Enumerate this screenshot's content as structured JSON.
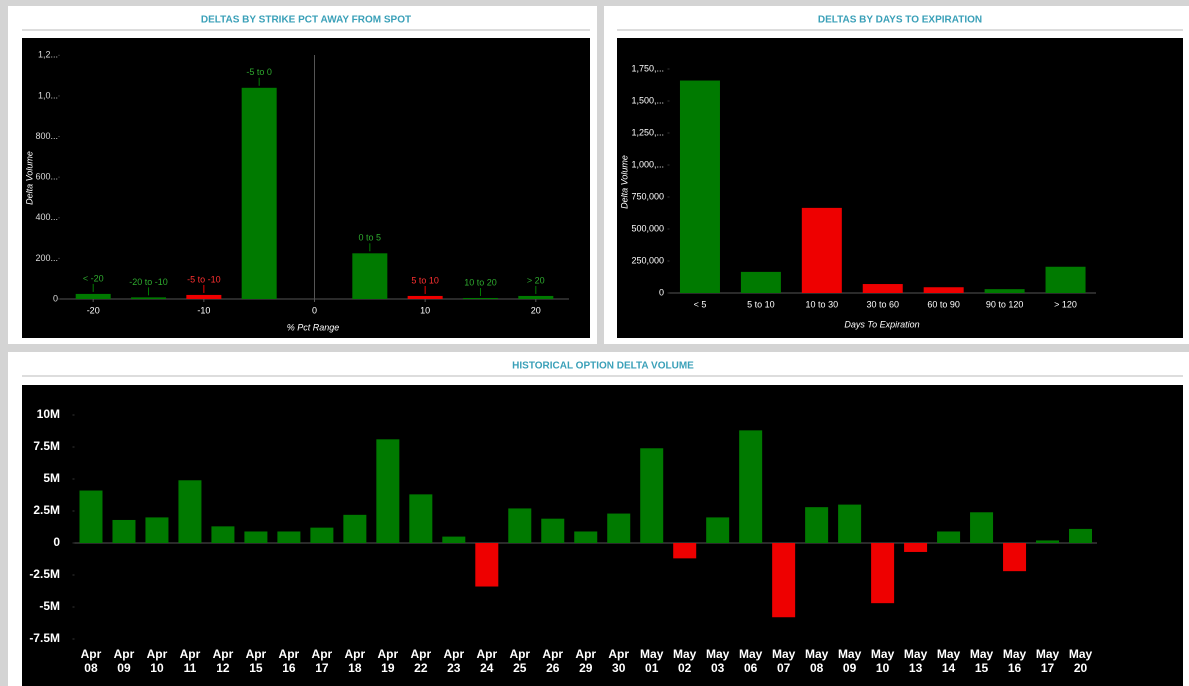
{
  "chart_data": [
    {
      "type": "bar",
      "title": "DELTAS BY STRIKE PCT AWAY FROM SPOT",
      "y_label": "Delta Volume",
      "x_label": "% Pct Range",
      "categories": [
        "< -20",
        "-20 to -10",
        "-5 to -10",
        "-5 to 0",
        "0 to 5",
        "5 to 10",
        "10 to 20",
        "> 20"
      ],
      "x": [
        -20,
        -15,
        -10,
        -5,
        5,
        10,
        15,
        20
      ],
      "values": [
        25000,
        8000,
        20000,
        1040000,
        225000,
        15000,
        5000,
        15000
      ],
      "colors": [
        "#007a00",
        "#007a00",
        "#ee0000",
        "#007a00",
        "#007a00",
        "#ee0000",
        "#007a00",
        "#007a00"
      ],
      "xlim": [
        -23,
        23
      ],
      "xticks": [
        -20,
        -10,
        0,
        10,
        20
      ],
      "ylim": [
        0,
        1300000
      ],
      "yticks": [
        0,
        {
          "value": 200000,
          "label": "200..."
        },
        {
          "value": 400000,
          "label": "400..."
        },
        {
          "value": 600000,
          "label": "600..."
        },
        {
          "value": 800000,
          "label": "800..."
        },
        {
          "value": 1000000,
          "label": "1,0..."
        },
        {
          "value": 1200000,
          "label": "1,2..."
        }
      ]
    },
    {
      "type": "bar",
      "title": "DELTAS BY DAYS TO EXPIRATION",
      "y_label": "Delta Volume",
      "x_label": "Days To Expiration",
      "categories": [
        "< 5",
        "5 to 10",
        "10 to 30",
        "30 to 60",
        "60 to 90",
        "90 to 120",
        "> 120"
      ],
      "values": [
        1660000,
        165000,
        665000,
        70000,
        45000,
        30000,
        205000
      ],
      "colors": [
        "#007a00",
        "#007a00",
        "#ee0000",
        "#ee0000",
        "#ee0000",
        "#007a00",
        "#007a00"
      ],
      "ylim": [
        0,
        2000000
      ],
      "yticks": [
        0,
        {
          "value": 250000,
          "label": "250,000"
        },
        {
          "value": 500000,
          "label": "500,000"
        },
        {
          "value": 750000,
          "label": "750,000"
        },
        {
          "value": 1000000,
          "label": "1,000,..."
        },
        {
          "value": 1250000,
          "label": "1,250,..."
        },
        {
          "value": 1500000,
          "label": "1,500,..."
        },
        {
          "value": 1750000,
          "label": "1,750,..."
        }
      ]
    },
    {
      "type": "bar",
      "title": "HISTORICAL OPTION DELTA VOLUME",
      "categories": [
        "Apr 08",
        "Apr 09",
        "Apr 10",
        "Apr 11",
        "Apr 12",
        "Apr 15",
        "Apr 16",
        "Apr 17",
        "Apr 18",
        "Apr 19",
        "Apr 22",
        "Apr 23",
        "Apr 24",
        "Apr 25",
        "Apr 26",
        "Apr 29",
        "Apr 30",
        "May 01",
        "May 02",
        "May 03",
        "May 06",
        "May 07",
        "May 08",
        "May 09",
        "May 10",
        "May 13",
        "May 14",
        "May 15",
        "May 16",
        "May 17",
        "May 20"
      ],
      "values": [
        4100000,
        1800000,
        2000000,
        4900000,
        1300000,
        900000,
        900000,
        1200000,
        2200000,
        8100000,
        3800000,
        500000,
        -3400000,
        2700000,
        1900000,
        900000,
        2300000,
        7400000,
        -1200000,
        2000000,
        8800000,
        -5800000,
        2800000,
        3000000,
        -4700000,
        -700000,
        900000,
        2400000,
        -2200000,
        200000,
        1100000
      ],
      "colors": [
        "#007a00",
        "#007a00",
        "#007a00",
        "#007a00",
        "#007a00",
        "#007a00",
        "#007a00",
        "#007a00",
        "#007a00",
        "#007a00",
        "#007a00",
        "#007a00",
        "#ee0000",
        "#007a00",
        "#007a00",
        "#007a00",
        "#007a00",
        "#007a00",
        "#ee0000",
        "#007a00",
        "#007a00",
        "#ee0000",
        "#007a00",
        "#007a00",
        "#ee0000",
        "#ee0000",
        "#007a00",
        "#007a00",
        "#ee0000",
        "#007a00",
        "#007a00"
      ],
      "ylim": [
        -7500000,
        12000000
      ],
      "yticks": [
        {
          "value": 10000000,
          "label": "10M"
        },
        {
          "value": 7500000,
          "label": "7.5M"
        },
        {
          "value": 5000000,
          "label": "5M"
        },
        {
          "value": 2500000,
          "label": "2.5M"
        },
        0,
        {
          "value": -2500000,
          "label": "-2.5M"
        },
        {
          "value": -5000000,
          "label": "-5M"
        },
        {
          "value": -7500000,
          "label": "-7.5M"
        }
      ]
    }
  ]
}
